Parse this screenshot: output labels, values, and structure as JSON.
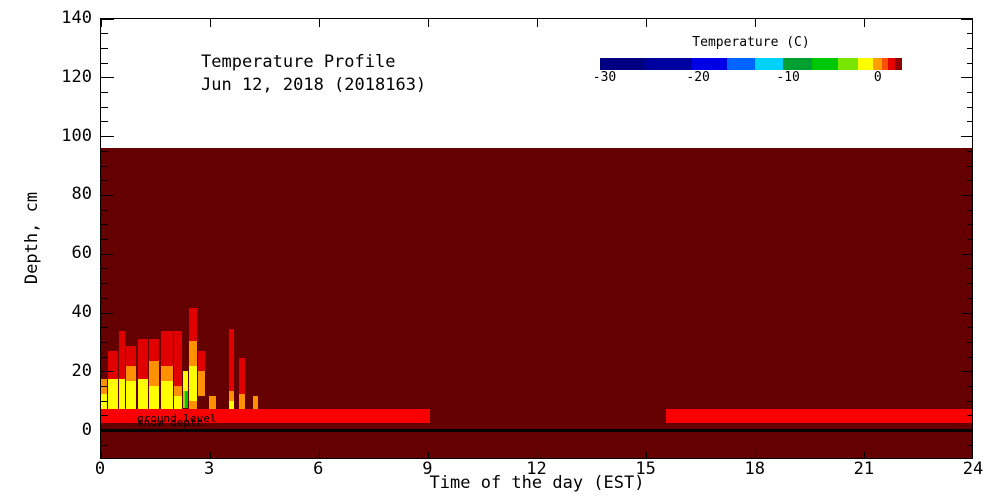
{
  "figure": {
    "title_line1": "Temperature Profile",
    "title_line2": "Jun 12, 2018 (2018163)",
    "x_axis_label": "Time of the day (EST)",
    "y_axis_label": "Depth, cm"
  },
  "annotations": [
    "ground level",
    "snow depth"
  ],
  "colorbar": {
    "title": "Temperature (C)",
    "tick_labels": [
      "-30",
      "-20",
      "-10",
      "0"
    ],
    "tick_pos_pct": [
      1.5,
      32.5,
      62.3,
      92.0
    ],
    "segments": [
      {
        "color": "#000082",
        "w": 14.9
      },
      {
        "color": "#0000A0",
        "w": 15.6
      },
      {
        "color": "#0000E6",
        "w": 11.6
      },
      {
        "color": "#0064FF",
        "w": 9.2
      },
      {
        "color": "#00D2FF",
        "w": 9.3
      },
      {
        "color": "#00A032",
        "w": 9.6
      },
      {
        "color": "#00C800",
        "w": 8.6
      },
      {
        "color": "#78E600",
        "w": 6.6
      },
      {
        "color": "#FFFF00",
        "w": 5.0
      },
      {
        "color": "#FFA000",
        "w": 3.0
      },
      {
        "color": "#FF5000",
        "w": 2.0
      },
      {
        "color": "#E60000",
        "w": 2.3
      },
      {
        "color": "#8C0000",
        "w": 2.3
      }
    ]
  },
  "colors": {
    "soil": "#640000",
    "band": "#FB0000",
    "red": "#E00000",
    "orange": "#FF9000",
    "yellow": "#FFFF00",
    "green": "#00C800",
    "lightgreen": "#8CDC00",
    "axis": "#000000"
  },
  "chart_data": {
    "type": "heatmap",
    "title": "Temperature Profile",
    "subtitle": "Jun 12, 2018 (2018163)",
    "xlabel": "Time of the day (EST)",
    "ylabel": "Depth, cm",
    "xlim": [
      0,
      24
    ],
    "ylim": [
      -10,
      140
    ],
    "x_ticks": [
      0,
      3,
      6,
      9,
      12,
      15,
      18,
      21,
      24
    ],
    "y_ticks": [
      0,
      20,
      40,
      60,
      80,
      100,
      120,
      140
    ],
    "y_minor_step": 5,
    "colorbar_title": "Temperature (C)",
    "colorbar_ticks": [
      -30,
      -20,
      -10,
      0
    ],
    "colorbar_range": [
      -30.5,
      3
    ],
    "soil_region": {
      "depth_top_cm": 96,
      "depth_bottom_cm": -10,
      "hours": [
        0,
        24
      ],
      "color_key": "soil"
    },
    "surface_warm_band": {
      "depth_top_cm": 7.5,
      "depth_bottom_cm": 2.5,
      "color_key": "band",
      "hour_segments": [
        [
          0,
          9.05
        ],
        [
          15.53,
          24
        ]
      ]
    },
    "ground_line_depth_cm": 0,
    "plume_columns": [
      {
        "h0": 0.0,
        "h1": 0.17,
        "segs": [
          [
            17.7,
            12.6,
            "orange"
          ],
          [
            12.6,
            6.8,
            "yellow"
          ]
        ]
      },
      {
        "h0": 0.19,
        "h1": 0.47,
        "segs": [
          [
            27.2,
            17.7,
            "red"
          ],
          [
            17.7,
            6.8,
            "yellow"
          ]
        ]
      },
      {
        "h0": 0.49,
        "h1": 0.66,
        "segs": [
          [
            34.0,
            17.7,
            "red"
          ],
          [
            17.7,
            7.5,
            "yellow"
          ]
        ]
      },
      {
        "h0": 0.69,
        "h1": 0.96,
        "segs": [
          [
            28.9,
            22.1,
            "red"
          ],
          [
            22.1,
            17.0,
            "orange"
          ],
          [
            17.0,
            6.8,
            "yellow"
          ]
        ]
      },
      {
        "h0": 1.02,
        "h1": 1.29,
        "segs": [
          [
            31.3,
            17.7,
            "red"
          ],
          [
            17.7,
            7.5,
            "yellow"
          ]
        ]
      },
      {
        "h0": 1.32,
        "h1": 1.59,
        "segs": [
          [
            31.3,
            23.8,
            "red"
          ],
          [
            23.8,
            15.3,
            "orange"
          ],
          [
            15.3,
            7.5,
            "yellow"
          ]
        ]
      },
      {
        "h0": 1.65,
        "h1": 1.98,
        "segs": [
          [
            34.0,
            22.1,
            "red"
          ],
          [
            22.1,
            17.0,
            "orange"
          ],
          [
            17.0,
            6.8,
            "yellow"
          ]
        ]
      },
      {
        "h0": 2.01,
        "h1": 2.23,
        "segs": [
          [
            34.0,
            15.3,
            "red"
          ],
          [
            15.3,
            11.9,
            "orange"
          ],
          [
            11.9,
            7.5,
            "yellow"
          ]
        ]
      },
      {
        "h0": 2.25,
        "h1": 2.32,
        "segs": [
          [
            20.4,
            13.6,
            "yellow"
          ],
          [
            13.6,
            7.8,
            "lightgreen"
          ]
        ]
      },
      {
        "h0": 2.32,
        "h1": 2.39,
        "segs": [
          [
            20.4,
            13.6,
            "yellow"
          ],
          [
            13.6,
            7.8,
            "green"
          ]
        ]
      },
      {
        "h0": 2.42,
        "h1": 2.64,
        "segs": [
          [
            41.8,
            30.6,
            "red"
          ],
          [
            30.6,
            22.1,
            "orange"
          ],
          [
            22.1,
            10.2,
            "yellow"
          ],
          [
            10.2,
            6.8,
            "orange"
          ]
        ]
      },
      {
        "h0": 2.66,
        "h1": 2.86,
        "segs": [
          [
            27.2,
            20.4,
            "red"
          ],
          [
            20.4,
            11.9,
            "orange"
          ]
        ]
      },
      {
        "h0": 2.97,
        "h1": 3.16,
        "segs": [
          [
            11.9,
            6.8,
            "orange"
          ]
        ]
      },
      {
        "h0": 3.52,
        "h1": 3.65,
        "segs": [
          [
            34.7,
            13.6,
            "red"
          ],
          [
            13.6,
            10.2,
            "orange"
          ],
          [
            10.2,
            7.5,
            "yellow"
          ]
        ]
      },
      {
        "h0": 3.8,
        "h1": 3.95,
        "segs": [
          [
            24.8,
            12.6,
            "red"
          ],
          [
            12.6,
            6.8,
            "orange"
          ]
        ]
      },
      {
        "h0": 4.18,
        "h1": 4.31,
        "segs": [
          [
            11.9,
            6.8,
            "orange"
          ]
        ]
      }
    ]
  }
}
